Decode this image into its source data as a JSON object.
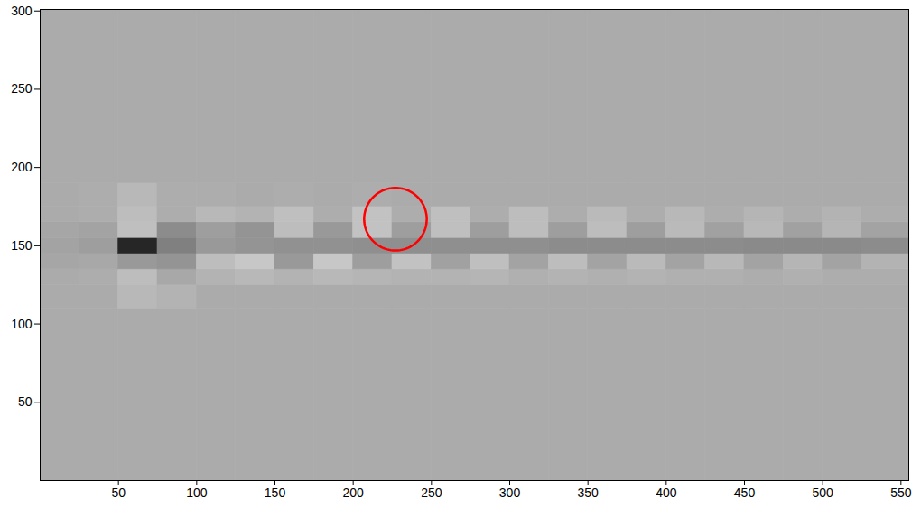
{
  "chart_data": {
    "type": "heatmap",
    "xlim": [
      0,
      555
    ],
    "ylim": [
      0,
      301
    ],
    "xticks": [
      50,
      100,
      150,
      200,
      250,
      300,
      350,
      400,
      450,
      500,
      550
    ],
    "yticks": [
      50,
      100,
      150,
      200,
      250,
      300
    ],
    "clim": [
      0,
      1
    ],
    "x_edges": [
      0,
      25,
      50,
      75,
      100,
      125,
      150,
      175,
      200,
      225,
      250,
      275,
      300,
      325,
      350,
      375,
      400,
      425,
      450,
      475,
      500,
      525,
      555
    ],
    "y_edges": [
      0,
      110,
      125,
      135,
      145,
      155,
      165,
      175,
      190,
      301
    ],
    "cells": [
      [
        0.67,
        0.67,
        0.67,
        0.67,
        0.67,
        0.67,
        0.67,
        0.67,
        0.67,
        0.67,
        0.67,
        0.67,
        0.67,
        0.67,
        0.67,
        0.67,
        0.67,
        0.67,
        0.67,
        0.67,
        0.67,
        0.67
      ],
      [
        0.67,
        0.67,
        0.72,
        0.7,
        0.67,
        0.67,
        0.67,
        0.67,
        0.67,
        0.67,
        0.67,
        0.67,
        0.67,
        0.67,
        0.67,
        0.67,
        0.67,
        0.67,
        0.67,
        0.67,
        0.67,
        0.67
      ],
      [
        0.67,
        0.68,
        0.74,
        0.66,
        0.7,
        0.72,
        0.7,
        0.72,
        0.71,
        0.7,
        0.7,
        0.71,
        0.69,
        0.7,
        0.69,
        0.7,
        0.69,
        0.69,
        0.68,
        0.69,
        0.68,
        0.68
      ],
      [
        0.65,
        0.66,
        0.6,
        0.58,
        0.74,
        0.78,
        0.6,
        0.78,
        0.62,
        0.76,
        0.63,
        0.75,
        0.64,
        0.74,
        0.64,
        0.73,
        0.64,
        0.72,
        0.64,
        0.71,
        0.64,
        0.7
      ],
      [
        0.64,
        0.62,
        0.15,
        0.5,
        0.6,
        0.58,
        0.57,
        0.57,
        0.56,
        0.56,
        0.56,
        0.56,
        0.56,
        0.55,
        0.55,
        0.55,
        0.55,
        0.55,
        0.54,
        0.54,
        0.54,
        0.55
      ],
      [
        0.65,
        0.64,
        0.75,
        0.55,
        0.62,
        0.58,
        0.74,
        0.6,
        0.76,
        0.62,
        0.75,
        0.62,
        0.74,
        0.62,
        0.74,
        0.62,
        0.73,
        0.63,
        0.72,
        0.63,
        0.71,
        0.64
      ],
      [
        0.67,
        0.68,
        0.74,
        0.68,
        0.72,
        0.7,
        0.75,
        0.68,
        0.76,
        0.68,
        0.75,
        0.68,
        0.74,
        0.68,
        0.73,
        0.68,
        0.72,
        0.68,
        0.71,
        0.68,
        0.7,
        0.68
      ],
      [
        0.67,
        0.68,
        0.72,
        0.68,
        0.68,
        0.67,
        0.68,
        0.67,
        0.68,
        0.67,
        0.67,
        0.67,
        0.67,
        0.67,
        0.67,
        0.67,
        0.67,
        0.67,
        0.67,
        0.67,
        0.67,
        0.67
      ],
      [
        0.67,
        0.67,
        0.67,
        0.67,
        0.67,
        0.67,
        0.67,
        0.67,
        0.67,
        0.67,
        0.67,
        0.67,
        0.67,
        0.67,
        0.67,
        0.67,
        0.67,
        0.67,
        0.67,
        0.67,
        0.67,
        0.67
      ]
    ],
    "circle": {
      "x": 227,
      "y": 167,
      "r": 20,
      "color": "#ff0000"
    }
  }
}
